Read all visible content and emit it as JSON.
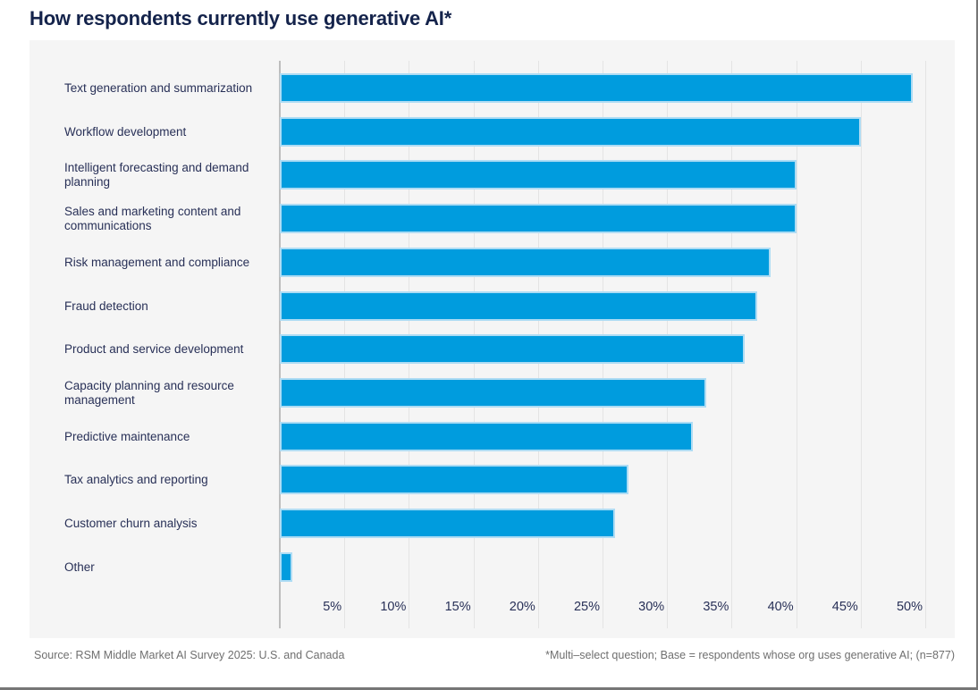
{
  "page": {
    "title": "How respondents currently use generative AI*",
    "footer_left": "Source: RSM Middle Market AI Survey 2025: U.S. and Canada",
    "footer_right": "*Multi–select question; Base = respondents whose org uses generative AI; (n=877)"
  },
  "colors": {
    "bar_fill": "#009cde",
    "bar_border": "#aedcf4",
    "panel_background": "#f5f5f5",
    "gridline": "#e4e4e4",
    "axis_line": "#bdbdbd",
    "title_text": "#14234b",
    "label_text": "#283057",
    "footer_text": "#6f6f6f",
    "frame_border": "#767676"
  },
  "chart_data": {
    "type": "bar",
    "orientation": "horizontal",
    "title": "How respondents currently use generative AI*",
    "categories": [
      "Text generation and summarization",
      "Workflow development",
      "Intelligent forecasting and demand planning",
      "Sales and marketing content and communications",
      "Risk management and compliance",
      "Fraud detection",
      "Product and service development",
      "Capacity planning and resource management",
      "Predictive maintenance",
      "Tax analytics and reporting",
      "Customer churn analysis",
      "Other"
    ],
    "values": [
      49,
      45,
      40,
      40,
      38,
      37,
      36,
      33,
      32,
      27,
      26,
      1
    ],
    "unit": "%",
    "x_ticks": [
      "5%",
      "10%",
      "15%",
      "20%",
      "25%",
      "30%",
      "35%",
      "40%",
      "45%",
      "50%"
    ],
    "x_tick_values": [
      5,
      10,
      15,
      20,
      25,
      30,
      35,
      40,
      45,
      50
    ],
    "xlim": [
      0,
      52
    ],
    "grid": "vertical",
    "legend": "none"
  }
}
